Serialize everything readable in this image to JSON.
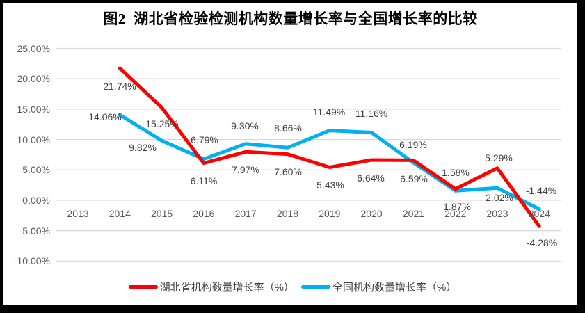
{
  "title": "图2  湖北省检验检测机构数量增长率与全国增长率的比较",
  "chart_data": {
    "type": "line",
    "title": "图2  湖北省检验检测机构数量增长率与全国增长率的比较",
    "categories": [
      "2013",
      "2014",
      "2015",
      "2016",
      "2017",
      "2018",
      "2019",
      "2020",
      "2021",
      "2022",
      "2023",
      "2024"
    ],
    "series": [
      {
        "name": "湖北省机构数量增长率（%）",
        "color": "#FF0000",
        "values": [
          null,
          21.74,
          15.25,
          6.11,
          7.97,
          7.6,
          5.43,
          6.64,
          6.59,
          1.87,
          5.29,
          -4.28
        ],
        "point_labels": [
          null,
          "21.74%",
          "15.25%",
          "6.11%",
          "7.97%",
          "7.60%",
          "5.43%",
          "6.64%",
          "6.59%",
          "1.87%",
          "5.29%",
          "-4.28%"
        ]
      },
      {
        "name": "全国机构数量增长率（%）",
        "color": "#00B0F0",
        "values": [
          null,
          14.06,
          9.82,
          6.79,
          9.3,
          8.66,
          11.49,
          11.16,
          6.19,
          1.58,
          2.02,
          -1.44
        ],
        "point_labels": [
          null,
          "14.06%",
          "9.82%",
          "6.79%",
          "9.30%",
          "8.66%",
          "11.49%",
          "11.16%",
          "6.19%",
          "1.58%",
          "2.02%",
          "-1.44%"
        ]
      }
    ],
    "y_axis": {
      "min": -10,
      "max": 25,
      "step": 5,
      "tick_labels": [
        "25.00%",
        "20.00%",
        "15.00%",
        "10.00%",
        "5.00%",
        "0.00%",
        "-5.00%",
        "-10.00%"
      ]
    },
    "x_axis": {
      "tick_labels": [
        "2013",
        "2014",
        "2015",
        "2016",
        "2017",
        "2018",
        "2019",
        "2020",
        "2021",
        "2022",
        "2023",
        "2024"
      ]
    },
    "gridlines": true,
    "legend_position": "bottom",
    "colors": {
      "gridline": "#D9D9D9",
      "axis_text": "#595959",
      "data_label_text": "#404040",
      "title_text": "#000000"
    }
  }
}
